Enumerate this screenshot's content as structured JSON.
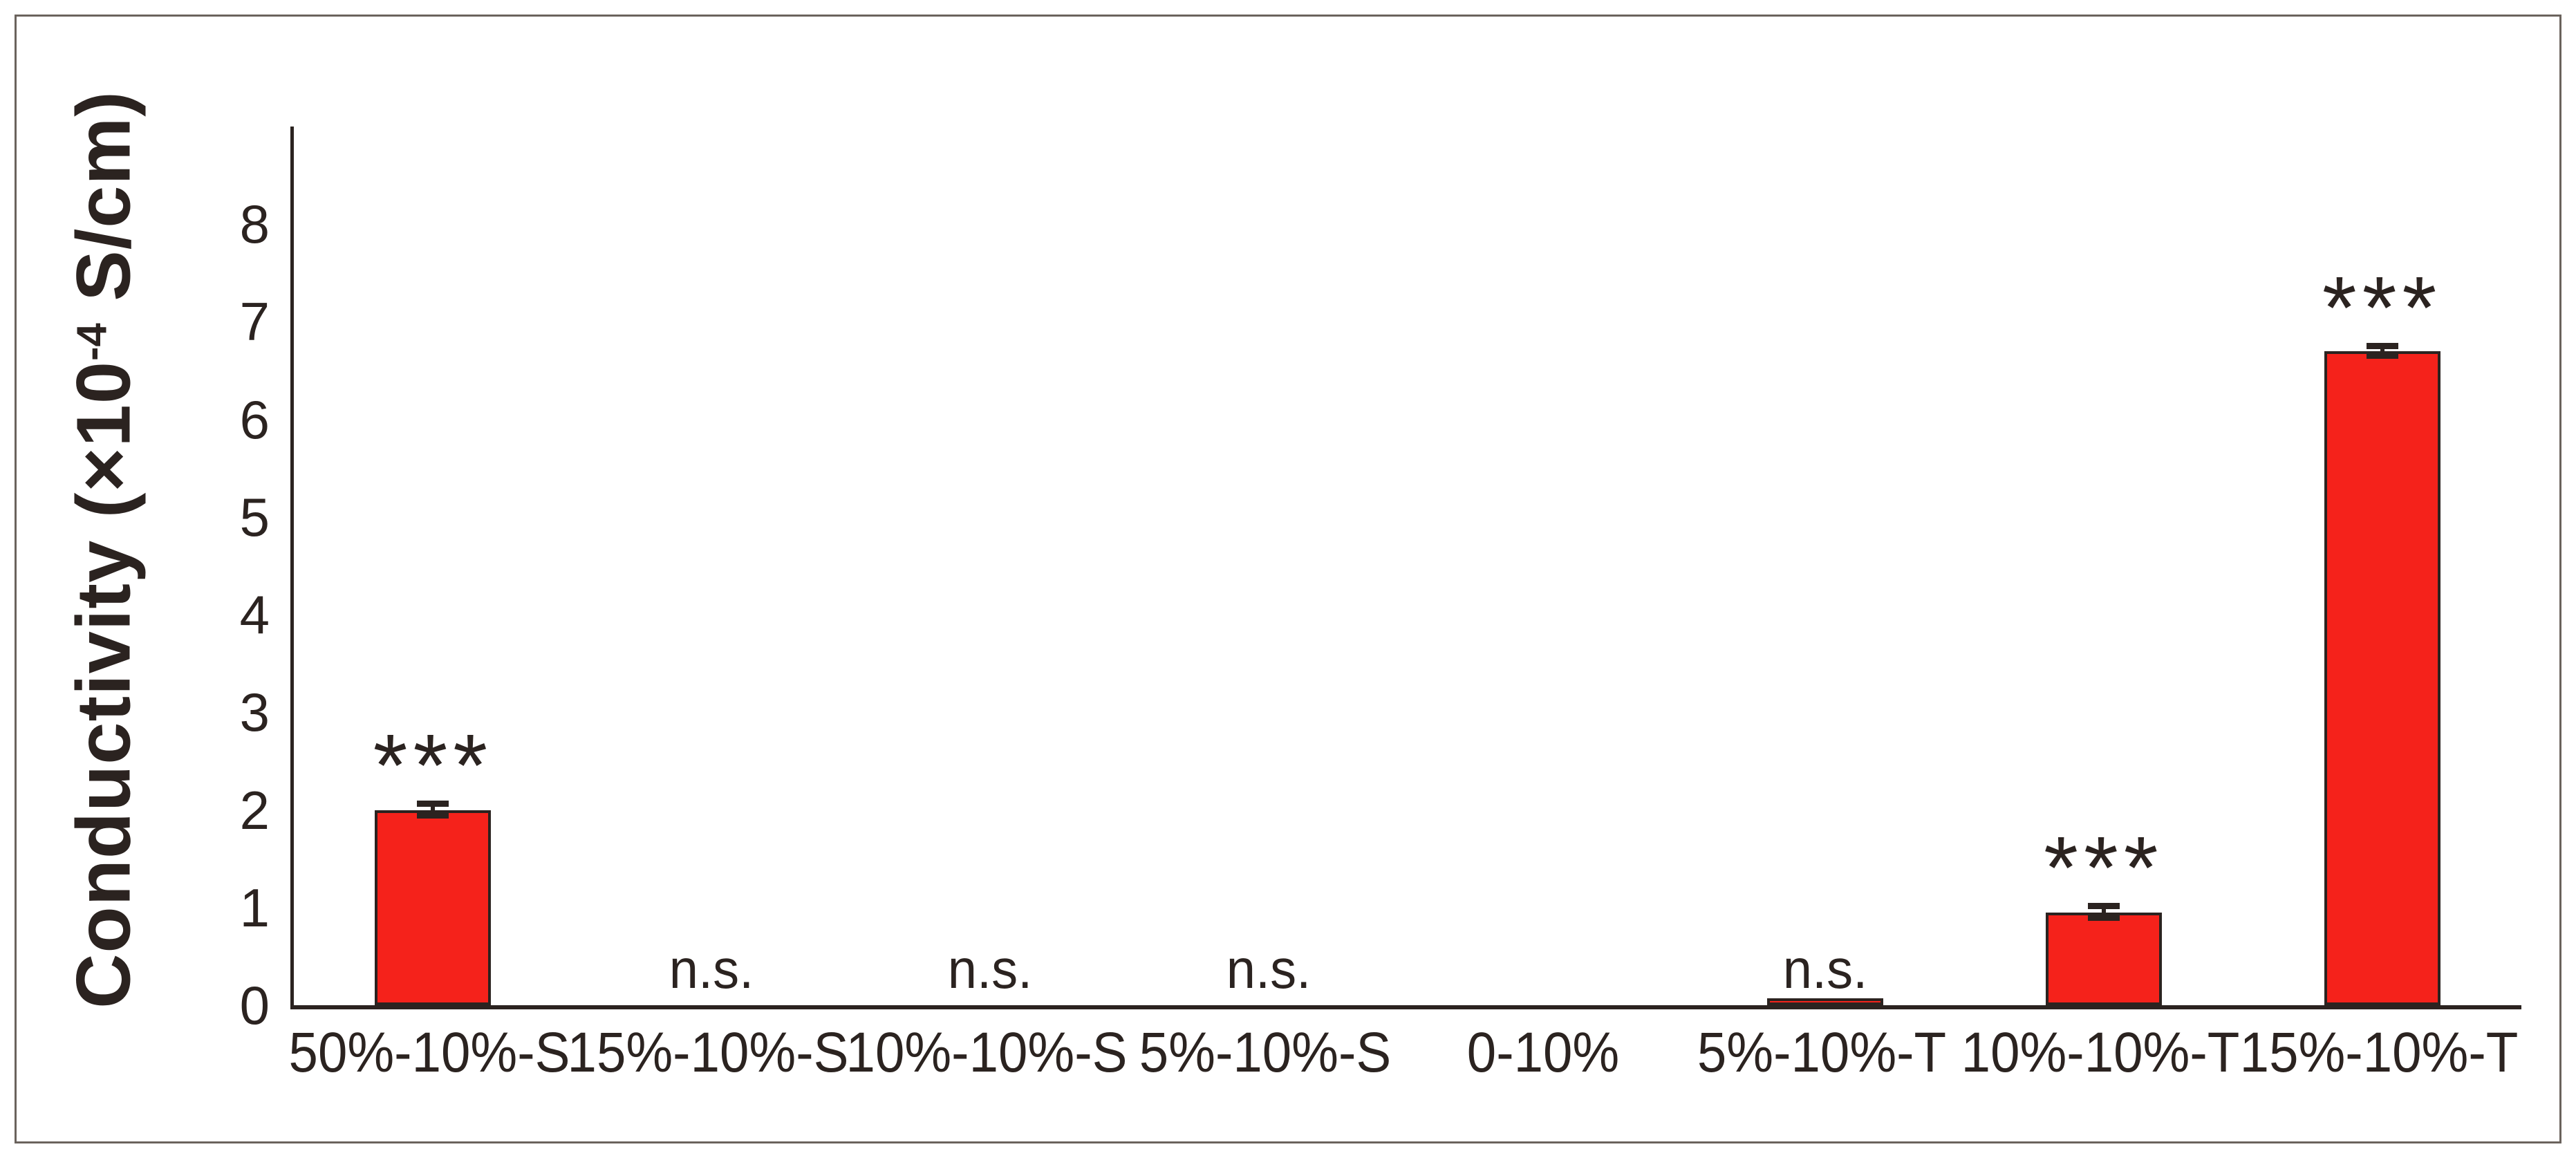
{
  "figure": {
    "background_color": "#ffffff",
    "frame_color": "#6b635d",
    "axis_color": "#2b2320",
    "text_color": "#2b2320"
  },
  "chart_data": {
    "type": "bar",
    "title": "",
    "xlabel": "",
    "ylabel": "Conductivity (×10-4 S/cm)",
    "ylabel_parts": {
      "prefix": "Conductivity (×10",
      "superscript": "-4",
      "suffix": " S/cm)"
    },
    "categories": [
      "50%-10%-S",
      "15%-10%-S",
      "10%-10%-S",
      "5%-10%-S",
      "0-10%",
      "5%-10%-T",
      "10%-10%-T",
      "15%-10%-T"
    ],
    "values": [
      2.0,
      0,
      0,
      0,
      0,
      0.07,
      0.95,
      6.7
    ],
    "errors": [
      0.06,
      0,
      0,
      0,
      0,
      0,
      0.06,
      0.05
    ],
    "annotations": [
      "***",
      "n.s.",
      "n.s.",
      "n.s.",
      "",
      "n.s.",
      "***",
      "***"
    ],
    "yticks": [
      "0",
      "1",
      "2",
      "3",
      "4",
      "5",
      "6",
      "7",
      "8"
    ],
    "ylim": [
      0,
      9
    ],
    "grid": false,
    "legend": null,
    "bar_color": "#f5221b",
    "bar_edge_color": "#2b2320"
  }
}
